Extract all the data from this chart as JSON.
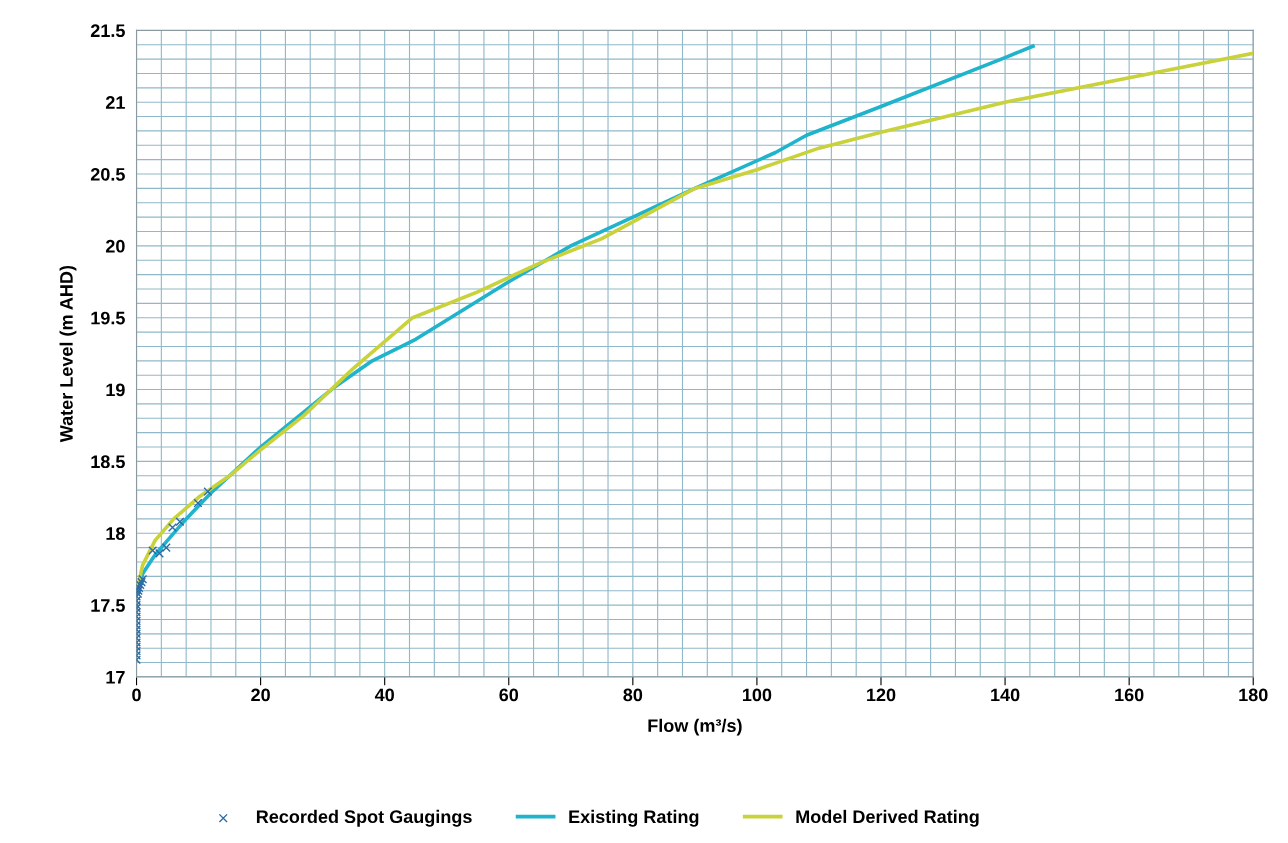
{
  "chart_data": {
    "type": "line",
    "xlabel": "Flow (m³/s)",
    "ylabel": "Water Level (m AHD)",
    "xlim": [
      0,
      180
    ],
    "ylim": [
      17,
      21.5
    ],
    "xticks": [
      0,
      {
        "value": 4,
        "label": null
      },
      {
        "value": 8,
        "label": null
      },
      {
        "value": 12,
        "label": null
      },
      {
        "value": 16,
        "label": null
      },
      20,
      {
        "value": 24,
        "label": null
      },
      {
        "value": 28,
        "label": null
      },
      {
        "value": 32,
        "label": null
      },
      {
        "value": 36,
        "label": null
      },
      40,
      {
        "value": 44,
        "label": null
      },
      {
        "value": 48,
        "label": null
      },
      {
        "value": 52,
        "label": null
      },
      {
        "value": 56,
        "label": null
      },
      60,
      {
        "value": 64,
        "label": null
      },
      {
        "value": 68,
        "label": null
      },
      {
        "value": 72,
        "label": null
      },
      {
        "value": 76,
        "label": null
      },
      80,
      {
        "value": 84,
        "label": null
      },
      {
        "value": 88,
        "label": null
      },
      {
        "value": 92,
        "label": null
      },
      {
        "value": 96,
        "label": null
      },
      100,
      {
        "value": 104,
        "label": null
      },
      {
        "value": 108,
        "label": null
      },
      {
        "value": 112,
        "label": null
      },
      {
        "value": 116,
        "label": null
      },
      120,
      {
        "value": 124,
        "label": null
      },
      {
        "value": 128,
        "label": null
      },
      {
        "value": 132,
        "label": null
      },
      {
        "value": 136,
        "label": null
      },
      140,
      {
        "value": 144,
        "label": null
      },
      {
        "value": 148,
        "label": null
      },
      {
        "value": 152,
        "label": null
      },
      {
        "value": 156,
        "label": null
      },
      160,
      {
        "value": 164,
        "label": null
      },
      {
        "value": 168,
        "label": null
      },
      {
        "value": 172,
        "label": null
      },
      {
        "value": 176,
        "label": null
      },
      180
    ],
    "yticks": [
      17,
      {
        "value": 17.1,
        "label": null
      },
      {
        "value": 17.2,
        "label": null
      },
      {
        "value": 17.3,
        "label": null
      },
      {
        "value": 17.4,
        "label": null
      },
      17.5,
      {
        "value": 17.6,
        "label": null
      },
      {
        "value": 17.7,
        "label": null
      },
      {
        "value": 17.8,
        "label": null
      },
      {
        "value": 17.9,
        "label": null
      },
      18,
      {
        "value": 18.1,
        "label": null
      },
      {
        "value": 18.2,
        "label": null
      },
      {
        "value": 18.3,
        "label": null
      },
      {
        "value": 18.4,
        "label": null
      },
      18.5,
      {
        "value": 18.6,
        "label": null
      },
      {
        "value": 18.7,
        "label": null
      },
      {
        "value": 18.8,
        "label": null
      },
      {
        "value": 18.9,
        "label": null
      },
      19,
      {
        "value": 19.1,
        "label": null
      },
      {
        "value": 19.2,
        "label": null
      },
      {
        "value": 19.3,
        "label": null
      },
      {
        "value": 19.4,
        "label": null
      },
      19.5,
      {
        "value": 19.6,
        "label": null
      },
      {
        "value": 19.7,
        "label": null
      },
      {
        "value": 19.8,
        "label": null
      },
      {
        "value": 19.9,
        "label": null
      },
      20,
      {
        "value": 20.1,
        "label": null
      },
      {
        "value": 20.2,
        "label": null
      },
      {
        "value": 20.3,
        "label": null
      },
      {
        "value": 20.4,
        "label": null
      },
      20.5,
      {
        "value": 20.6,
        "label": null
      },
      {
        "value": 20.7,
        "label": null
      },
      {
        "value": 20.8,
        "label": null
      },
      {
        "value": 20.9,
        "label": null
      },
      21,
      {
        "value": 21.1,
        "label": null
      },
      {
        "value": 21.2,
        "label": null
      },
      {
        "value": 21.3,
        "label": null
      },
      {
        "value": 21.4,
        "label": null
      },
      21.5
    ],
    "grid": true,
    "legend": "bottom",
    "series": [
      {
        "name": "Recorded Spot Gaugings",
        "type": "scatter",
        "marker": "cross",
        "color": "#2a6ca6",
        "x": [
          0,
          0,
          0,
          0,
          0,
          0,
          0,
          0,
          0,
          0,
          0,
          0,
          0,
          0,
          0,
          0,
          0.2,
          0.3,
          0.4,
          0.6,
          0.8,
          1.0,
          2.6,
          3.7,
          4.8,
          5.8,
          7.0,
          9.9,
          11.5
        ],
        "values": [
          17.12,
          17.15,
          17.18,
          17.21,
          17.24,
          17.27,
          17.3,
          17.33,
          17.36,
          17.39,
          17.42,
          17.45,
          17.48,
          17.5,
          17.53,
          17.56,
          17.58,
          17.6,
          17.62,
          17.64,
          17.66,
          17.68,
          17.88,
          17.86,
          17.9,
          18.04,
          18.08,
          18.21,
          18.29
        ]
      },
      {
        "name": "Existing Rating",
        "color": "#1fb3cc",
        "x": [
          0.3,
          1,
          3,
          5,
          8,
          12,
          20,
          32,
          38,
          45,
          60,
          70,
          80,
          90,
          103,
          108,
          120,
          140,
          144.5
        ],
        "values": [
          17.6,
          17.72,
          17.85,
          17.95,
          18.1,
          18.28,
          18.6,
          19.02,
          19.2,
          19.35,
          19.75,
          20.0,
          20.2,
          20.4,
          20.65,
          20.77,
          20.97,
          21.31,
          21.39
        ]
      },
      {
        "name": "Model Derived Rating",
        "color": "#c9d23a",
        "x": [
          0.3,
          1,
          3,
          6,
          10,
          15,
          20,
          27,
          35,
          44.5,
          55,
          65,
          75,
          90,
          100,
          110,
          120,
          140,
          160,
          180
        ],
        "values": [
          17.65,
          17.78,
          17.95,
          18.1,
          18.25,
          18.4,
          18.58,
          18.82,
          19.15,
          19.5,
          19.68,
          19.88,
          20.05,
          20.4,
          20.53,
          20.68,
          20.79,
          21.0,
          21.17,
          21.34
        ]
      }
    ]
  }
}
